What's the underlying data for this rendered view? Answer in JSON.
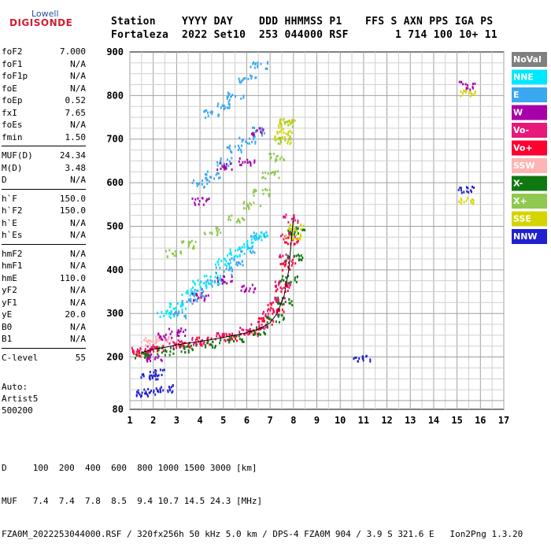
{
  "logo": {
    "top": "Lowell",
    "bottom": "DIGISONDE"
  },
  "header": {
    "labels": [
      "Station",
      "YYYY DAY",
      "DDD HHMMSS P1",
      "FFS S AXN PPS IGA PS"
    ],
    "values": [
      "Fortaleza",
      "2022 Set10",
      "253 044000 RSF",
      "1 714 100 10+ 11"
    ]
  },
  "params": [
    [
      {
        "k": "foF2",
        "v": "7.000"
      },
      {
        "k": "foF1",
        "v": "N/A"
      },
      {
        "k": "foF1p",
        "v": "N/A"
      },
      {
        "k": "foE",
        "v": "N/A"
      },
      {
        "k": "foEp",
        "v": "0.52"
      },
      {
        "k": "fxI",
        "v": "7.65"
      },
      {
        "k": "foEs",
        "v": "N/A"
      },
      {
        "k": "fmin",
        "v": "1.50"
      }
    ],
    [
      {
        "k": "MUF(D)",
        "v": "24.34"
      },
      {
        "k": "M(D)",
        "v": "3.48"
      },
      {
        "k": "D",
        "v": "N/A"
      }
    ],
    [
      {
        "k": "h`F",
        "v": "150.0"
      },
      {
        "k": "h`F2",
        "v": "150.0"
      },
      {
        "k": "h`E",
        "v": "N/A"
      },
      {
        "k": "h`Es",
        "v": "N/A"
      }
    ],
    [
      {
        "k": "hmF2",
        "v": "N/A"
      },
      {
        "k": "hmF1",
        "v": "N/A"
      },
      {
        "k": "hmE",
        "v": "110.0"
      },
      {
        "k": "yF2",
        "v": "N/A"
      },
      {
        "k": "yF1",
        "v": "N/A"
      },
      {
        "k": "yE",
        "v": "20.0"
      },
      {
        "k": "B0",
        "v": "N/A"
      },
      {
        "k": "B1",
        "v": "N/A"
      }
    ],
    [
      {
        "k": "C-level",
        "v": "55"
      }
    ]
  ],
  "auto": {
    "line1": "Auto:",
    "line2": "Artist5",
    "line3": "500200"
  },
  "bottom": {
    "line1": "D     100  200  400  600  800 1000 1500 3000 [km]",
    "line2": "MUF   7.4  7.4  7.8  8.5  9.4 10.7 14.5 24.3 [MHz]",
    "line3": "FZA0M_2022253044000.RSF / 320fx256h 50 kHz 5.0 km / DPS-4 FZA0M 904 / 3.9 S 321.6 E   Ion2Png 1.3.20"
  },
  "legend": [
    {
      "label": "NoVal",
      "color": "#808080",
      "text": "#ffffff"
    },
    {
      "label": "NNE",
      "color": "#00e8ff",
      "text": "#ffffff"
    },
    {
      "label": "E",
      "color": "#3aa8f0",
      "text": "#ffffff"
    },
    {
      "label": "W",
      "color": "#a800a8",
      "text": "#ffffff"
    },
    {
      "label": "Vo-",
      "color": "#e81878",
      "text": "#ffffff"
    },
    {
      "label": "Vo+",
      "color": "#ff0030",
      "text": "#ffffff"
    },
    {
      "label": "SSW",
      "color": "#ffb4b4",
      "text": "#ffffff"
    },
    {
      "label": "X-",
      "color": "#107810",
      "text": "#ffffff"
    },
    {
      "label": "X+",
      "color": "#90c850",
      "text": "#ffffff"
    },
    {
      "label": "SSE",
      "color": "#d4d400",
      "text": "#ffffff"
    },
    {
      "label": "NNW",
      "color": "#2020d0",
      "text": "#ffffff"
    }
  ],
  "chart_data": {
    "type": "scatter",
    "xlabel": "",
    "ylabel": "",
    "xlim": [
      1,
      17
    ],
    "ylim": [
      80,
      900
    ],
    "xticks": [
      "1",
      "2",
      "3",
      "4",
      "5",
      "6",
      "7",
      "8",
      "9",
      "10",
      "11",
      "12",
      "13",
      "14",
      "15",
      "16",
      "17"
    ],
    "yticks": [
      {
        "v": 80,
        "label": "80"
      },
      {
        "v": 200,
        "label": "200"
      },
      {
        "v": 300,
        "label": "300"
      },
      {
        "v": 400,
        "label": "400"
      },
      {
        "v": 500,
        "label": "500"
      },
      {
        "v": 600,
        "label": "600"
      },
      {
        "v": 700,
        "label": "700"
      },
      {
        "v": 800,
        "label": "800"
      },
      {
        "v": 900,
        "label": "900"
      }
    ],
    "grid": true,
    "trace_points": [
      {
        "x": 1.5,
        "y": 210
      },
      {
        "x": 2.0,
        "y": 218
      },
      {
        "x": 2.5,
        "y": 222
      },
      {
        "x": 3.0,
        "y": 228
      },
      {
        "x": 3.5,
        "y": 232
      },
      {
        "x": 4.0,
        "y": 236
      },
      {
        "x": 4.5,
        "y": 240
      },
      {
        "x": 5.0,
        "y": 245
      },
      {
        "x": 5.5,
        "y": 250
      },
      {
        "x": 6.0,
        "y": 256
      },
      {
        "x": 6.5,
        "y": 264
      },
      {
        "x": 7.0,
        "y": 278
      },
      {
        "x": 7.3,
        "y": 300
      },
      {
        "x": 7.6,
        "y": 340
      },
      {
        "x": 7.8,
        "y": 400
      },
      {
        "x": 7.9,
        "y": 460
      },
      {
        "x": 8.0,
        "y": 520
      }
    ],
    "series": [
      {
        "name": "Vo-",
        "points": [
          [
            1.3,
            215
          ],
          [
            2,
            222
          ],
          [
            3,
            232
          ],
          [
            4,
            240
          ],
          [
            5,
            248
          ],
          [
            6,
            262
          ],
          [
            6.5,
            275
          ],
          [
            7,
            300
          ],
          [
            7.3,
            330
          ],
          [
            7.5,
            370
          ],
          [
            7.7,
            430
          ],
          [
            7.8,
            480
          ],
          [
            7.9,
            520
          ]
        ]
      },
      {
        "name": "Vo+",
        "points": [
          [
            1.4,
            212
          ],
          [
            2.2,
            220
          ],
          [
            3.2,
            230
          ],
          [
            4.2,
            238
          ],
          [
            5.2,
            247
          ],
          [
            6.2,
            260
          ],
          [
            6.8,
            285
          ],
          [
            7.2,
            315
          ],
          [
            7.5,
            360
          ],
          [
            7.7,
            410
          ],
          [
            7.9,
            470
          ]
        ]
      },
      {
        "name": "X-",
        "points": [
          [
            1.5,
            205
          ],
          [
            2.5,
            215
          ],
          [
            3.5,
            222
          ],
          [
            4.5,
            232
          ],
          [
            5.5,
            244
          ],
          [
            6.5,
            262
          ],
          [
            7.2,
            290
          ],
          [
            7.6,
            330
          ],
          [
            7.8,
            380
          ],
          [
            8.0,
            430
          ],
          [
            8.1,
            490
          ]
        ]
      },
      {
        "name": "X+",
        "points": [
          [
            2.8,
            440
          ],
          [
            3.5,
            460
          ],
          [
            4.5,
            490
          ],
          [
            5.5,
            520
          ],
          [
            6.2,
            550
          ],
          [
            6.6,
            580
          ],
          [
            7.0,
            620
          ],
          [
            7.3,
            660
          ],
          [
            7.5,
            700
          ],
          [
            7.7,
            740
          ]
        ]
      },
      {
        "name": "E",
        "points": [
          [
            3,
            300
          ],
          [
            3.5,
            330
          ],
          [
            4,
            350
          ],
          [
            4.5,
            370
          ],
          [
            5,
            400
          ],
          [
            5.5,
            420
          ],
          [
            6,
            450
          ],
          [
            6.5,
            480
          ],
          [
            4,
            600
          ],
          [
            4.5,
            620
          ],
          [
            5,
            650
          ],
          [
            5.5,
            680
          ],
          [
            6,
            700
          ],
          [
            6.5,
            720
          ],
          [
            4.5,
            760
          ],
          [
            5,
            780
          ],
          [
            5.5,
            800
          ],
          [
            6,
            840
          ],
          [
            6.5,
            870
          ]
        ]
      },
      {
        "name": "NNE",
        "points": [
          [
            2.5,
            300
          ],
          [
            3,
            320
          ],
          [
            3.5,
            350
          ],
          [
            4,
            370
          ],
          [
            4.5,
            380
          ],
          [
            5,
            420
          ],
          [
            5.5,
            440
          ],
          [
            6,
            460
          ],
          [
            6.5,
            480
          ]
        ]
      },
      {
        "name": "W",
        "points": [
          [
            2,
            200
          ],
          [
            2.5,
            250
          ],
          [
            3,
            260
          ],
          [
            4,
            340
          ],
          [
            5,
            380
          ],
          [
            6,
            360
          ],
          [
            4,
            560
          ],
          [
            5,
            640
          ],
          [
            6,
            650
          ],
          [
            6.5,
            720
          ],
          [
            15.4,
            825
          ]
        ]
      },
      {
        "name": "SSE",
        "points": [
          [
            7.5,
            700
          ],
          [
            7.6,
            720
          ],
          [
            7.7,
            740
          ],
          [
            8,
            480
          ],
          [
            8.1,
            500
          ],
          [
            15.4,
            805
          ],
          [
            15.4,
            560
          ]
        ]
      },
      {
        "name": "NNW",
        "points": [
          [
            1.5,
            120
          ],
          [
            2,
            125
          ],
          [
            2.5,
            130
          ],
          [
            1.8,
            160
          ],
          [
            2.2,
            165
          ],
          [
            10.9,
            200
          ],
          [
            15.4,
            585
          ]
        ]
      },
      {
        "name": "SSW",
        "points": [
          [
            1.8,
            238
          ],
          [
            2.4,
            242
          ]
        ]
      },
      {
        "name": "NoVal",
        "points": []
      }
    ]
  }
}
